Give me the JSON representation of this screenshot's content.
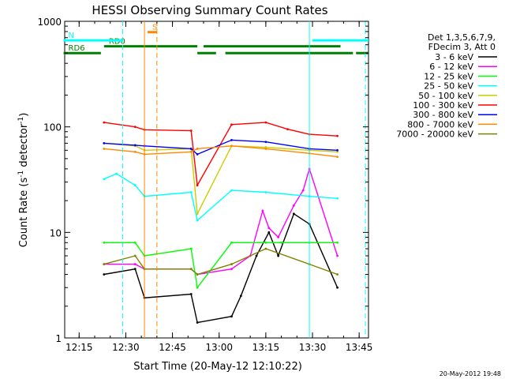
{
  "chart_data": {
    "type": "line",
    "title": "HESSI Observing Summary Count Rates",
    "xlabel": "Start Time (20-May-12 12:10:22)",
    "ylabel": "Count Rate (s⁻¹ detector⁻¹)",
    "ylabel_parts": {
      "main": "Count Rate (s",
      "sup1": "-1",
      "mid": " detector",
      "sup2": "-1",
      "end": ")"
    },
    "yscale": "log",
    "ylim": [
      1,
      1000
    ],
    "xlim": [
      "12:10:22",
      "13:48:00"
    ],
    "xticks": [
      "12:15",
      "12:30",
      "12:45",
      "13:00",
      "13:15",
      "13:30",
      "13:45"
    ],
    "yticks": [
      "1",
      "10",
      "100",
      "1000"
    ],
    "footer": "20-May-2012 19:48",
    "legend_header": [
      "Det 1,3,5,6,7,9,",
      "FDecim 3, Att 0"
    ],
    "series": [
      {
        "name": "3 - 6 keV",
        "color": "#000000",
        "points": [
          [
            "12:23",
            4
          ],
          [
            "12:33",
            4.5
          ],
          [
            "12:36",
            2.4
          ],
          [
            "12:51",
            2.6
          ],
          [
            "12:53",
            1.4
          ],
          [
            "13:04",
            1.6
          ],
          [
            "13:07",
            2.5
          ],
          [
            "13:12",
            6
          ],
          [
            "13:16",
            10
          ],
          [
            "13:19",
            6
          ],
          [
            "13:24",
            15
          ],
          [
            "13:29",
            12
          ],
          [
            "13:38",
            3
          ]
        ]
      },
      {
        "name": "6 - 12 keV",
        "color": "#ff00ff",
        "points": [
          [
            "12:23",
            5
          ],
          [
            "12:33",
            5
          ],
          [
            "12:36",
            4.5
          ],
          [
            "12:51",
            4.5
          ],
          [
            "12:53",
            4
          ],
          [
            "13:04",
            4.5
          ],
          [
            "13:10",
            6
          ],
          [
            "13:14",
            16
          ],
          [
            "13:16",
            11
          ],
          [
            "13:19",
            9
          ],
          [
            "13:24",
            18
          ],
          [
            "13:27",
            25
          ],
          [
            "13:29",
            40
          ],
          [
            "13:38",
            6
          ]
        ]
      },
      {
        "name": "12 - 25 keV",
        "color": "#00ff00",
        "points": [
          [
            "12:23",
            8
          ],
          [
            "12:33",
            8
          ],
          [
            "12:36",
            6
          ],
          [
            "12:51",
            7
          ],
          [
            "12:53",
            3
          ],
          [
            "13:04",
            8
          ],
          [
            "13:15",
            8
          ],
          [
            "13:20",
            8
          ],
          [
            "13:29",
            8
          ],
          [
            "13:38",
            8
          ]
        ]
      },
      {
        "name": "25 - 50 keV",
        "color": "#00ffff",
        "points": [
          [
            "12:23",
            32
          ],
          [
            "12:27",
            36
          ],
          [
            "12:33",
            28
          ],
          [
            "12:36",
            22
          ],
          [
            "12:51",
            24
          ],
          [
            "12:53",
            13
          ],
          [
            "13:04",
            25
          ],
          [
            "13:15",
            24
          ],
          [
            "13:29",
            22
          ],
          [
            "13:38",
            21
          ]
        ]
      },
      {
        "name": "50 - 100 keV",
        "color": "#cccc00",
        "points": [
          [
            "12:23",
            70
          ],
          [
            "12:33",
            66
          ],
          [
            "12:36",
            60
          ],
          [
            "12:51",
            62
          ],
          [
            "12:53",
            15
          ],
          [
            "13:04",
            66
          ],
          [
            "13:15",
            64
          ],
          [
            "13:29",
            60
          ],
          [
            "13:38",
            58
          ]
        ]
      },
      {
        "name": "100 - 300 keV",
        "color": "#ff0000",
        "points": [
          [
            "12:23",
            110
          ],
          [
            "12:33",
            100
          ],
          [
            "12:36",
            94
          ],
          [
            "12:51",
            92
          ],
          [
            "12:53",
            28
          ],
          [
            "13:04",
            105
          ],
          [
            "13:15",
            110
          ],
          [
            "13:22",
            95
          ],
          [
            "13:29",
            85
          ],
          [
            "13:38",
            82
          ]
        ]
      },
      {
        "name": "300 - 800 keV",
        "color": "#0000ff",
        "points": [
          [
            "12:23",
            70
          ],
          [
            "12:33",
            67
          ],
          [
            "12:36",
            66
          ],
          [
            "12:51",
            62
          ],
          [
            "12:53",
            55
          ],
          [
            "13:04",
            75
          ],
          [
            "13:15",
            72
          ],
          [
            "13:29",
            62
          ],
          [
            "13:38",
            60
          ]
        ]
      },
      {
        "name": "800 - 7000 keV",
        "color": "#ff8800",
        "points": [
          [
            "12:23",
            62
          ],
          [
            "12:33",
            58
          ],
          [
            "12:36",
            55
          ],
          [
            "12:51",
            58
          ],
          [
            "12:53",
            62
          ],
          [
            "13:04",
            66
          ],
          [
            "13:15",
            62
          ],
          [
            "13:29",
            56
          ],
          [
            "13:38",
            52
          ]
        ]
      },
      {
        "name": "7000 - 20000 keV",
        "color": "#808000",
        "points": [
          [
            "12:23",
            5
          ],
          [
            "12:33",
            6
          ],
          [
            "12:36",
            4.5
          ],
          [
            "12:51",
            4.5
          ],
          [
            "12:53",
            4
          ],
          [
            "13:04",
            5
          ],
          [
            "13:15",
            7
          ],
          [
            "13:29",
            5
          ],
          [
            "13:38",
            4
          ]
        ]
      }
    ],
    "flags": [
      {
        "label": "RD0",
        "color": "#008000",
        "level": 580,
        "segments": [
          [
            "12:23",
            "12:53"
          ],
          [
            "12:55",
            "13:39"
          ]
        ]
      },
      {
        "label": "RD6",
        "color": "#008000",
        "level": 500,
        "segments": [
          [
            "12:10",
            "12:22"
          ],
          [
            "12:53",
            "12:59"
          ],
          [
            "13:02",
            "13:43"
          ],
          [
            "13:44",
            "13:48"
          ]
        ]
      },
      {
        "label": "N",
        "color": "#00ffff",
        "level": 660,
        "segments": [
          [
            "12:10",
            "12:29"
          ],
          [
            "13:30",
            "13:48"
          ]
        ]
      },
      {
        "label": "S",
        "color": "#ff8800",
        "level": 790,
        "segments": [
          [
            "12:37",
            "12:40"
          ]
        ]
      }
    ],
    "vlines": [
      {
        "time": "12:29",
        "color": "#00ffff",
        "style": "dashed"
      },
      {
        "time": "12:36",
        "color": "#ff8800",
        "style": "solid"
      },
      {
        "time": "12:40",
        "color": "#ff8800",
        "style": "dashed"
      },
      {
        "time": "13:29",
        "color": "#00ffff",
        "style": "solid"
      },
      {
        "time": "13:47",
        "color": "#00ffff",
        "style": "dashed"
      }
    ],
    "grid": false,
    "legend_position": "right"
  }
}
